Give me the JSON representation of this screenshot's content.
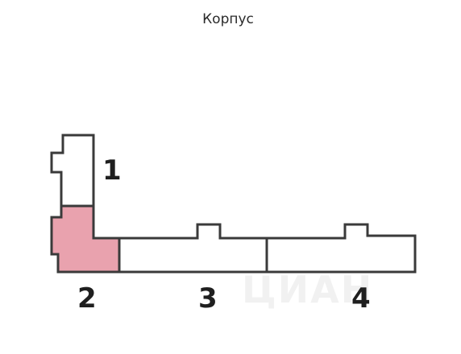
{
  "header": {
    "title": "Корпус"
  },
  "buildings": [
    {
      "number": "1",
      "selected": false
    },
    {
      "number": "2",
      "selected": true
    },
    {
      "number": "3",
      "selected": false
    },
    {
      "number": "4",
      "selected": false
    }
  ],
  "colors": {
    "selected_fill": "#e9a2ae",
    "outline": "#3a3a3a"
  }
}
